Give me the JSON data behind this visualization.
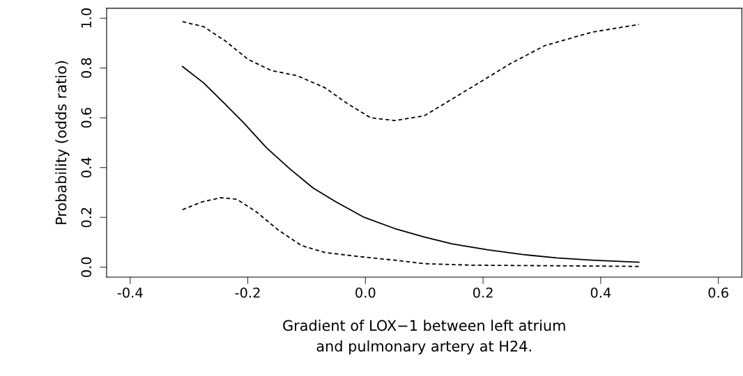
{
  "chart_data": {
    "type": "line",
    "xlabel": "Gradient of LOX−1 between left atrium\nand pulmonary artery at H24.",
    "ylabel": "Probability (odds ratio)",
    "xlim": [
      -0.44,
      0.64
    ],
    "ylim": [
      -0.04,
      1.04
    ],
    "xticks": [
      -0.4,
      -0.2,
      {
        "value": 0,
        "label": "0.0"
      },
      0.2,
      0.4,
      0.6
    ],
    "yticks": [
      {
        "value": 0,
        "label": "0.0"
      },
      0.2,
      0.4,
      0.6,
      0.8,
      {
        "value": 1,
        "label": "1.0"
      }
    ],
    "series": [
      {
        "color": "#000000",
        "line_style": "solid",
        "x": [
          -0.311,
          -0.275,
          -0.239,
          -0.207,
          -0.168,
          -0.128,
          -0.089,
          -0.05,
          -0.002,
          0.05,
          0.1,
          0.148,
          0.207,
          0.266,
          0.325,
          0.385,
          0.465
        ],
        "values": [
          0.806,
          0.74,
          0.656,
          0.58,
          0.479,
          0.394,
          0.318,
          0.262,
          0.2,
          0.155,
          0.121,
          0.093,
          0.07,
          0.051,
          0.037,
          0.028,
          0.02
        ]
      },
      {
        "color": "#000000",
        "line_style": "dashed",
        "x": [
          -0.311,
          -0.275,
          -0.239,
          -0.199,
          -0.16,
          -0.116,
          -0.069,
          -0.03,
          0.009,
          0.05,
          0.1,
          0.128,
          0.187,
          0.246,
          0.305,
          0.385,
          0.465
        ],
        "values": [
          0.986,
          0.966,
          0.91,
          0.834,
          0.79,
          0.769,
          0.721,
          0.656,
          0.6,
          0.589,
          0.608,
          0.648,
          0.732,
          0.817,
          0.89,
          0.944,
          0.975
        ]
      },
      {
        "color": "#000000",
        "line_style": "dashed",
        "x": [
          -0.311,
          -0.278,
          -0.246,
          -0.219,
          -0.187,
          -0.148,
          -0.109,
          -0.069,
          -0.009,
          0.05,
          0.1,
          0.18,
          0.465
        ],
        "values": [
          0.231,
          0.262,
          0.279,
          0.273,
          0.225,
          0.149,
          0.087,
          0.059,
          0.042,
          0.028,
          0.014,
          0.008,
          0.003
        ]
      }
    ]
  }
}
